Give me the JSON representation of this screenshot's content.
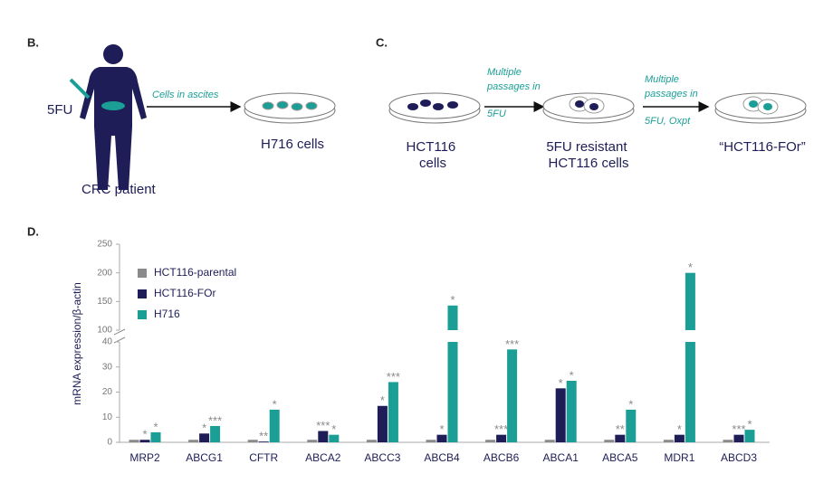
{
  "panel_b": {
    "label": "B.",
    "drug": "5FU",
    "arrow_label": "Cells in ascites",
    "cells": "H716 cells",
    "patient": "CRC patient"
  },
  "panel_c": {
    "label": "C.",
    "start_cells": [
      "HCT116",
      "cells"
    ],
    "step1": [
      "Multiple",
      "passages in",
      "5FU"
    ],
    "resistant_cells": [
      "5FU resistant",
      "HCT116 cells"
    ],
    "step2": [
      "Multiple",
      "passages in",
      "5FU, Oxpt"
    ],
    "final_cells": "“HCT116-FOr”"
  },
  "chart_data": {
    "type": "bar",
    "panel_label": "D.",
    "y_label": "mRNA expression/β-actin",
    "categories": [
      "MRP2",
      "ABCG1",
      "CFTR",
      "ABCA2",
      "ABCC3",
      "ABCB4",
      "ABCB6",
      "ABCA1",
      "ABCA5",
      "MDR1",
      "ABCD3"
    ],
    "series": [
      {
        "name": "HCT116-parental",
        "color": "#8a8a8a",
        "values": [
          1,
          1,
          1,
          1,
          1,
          1,
          1,
          1,
          1,
          1,
          1
        ]
      },
      {
        "name": "HCT116-FOr",
        "color": "#1e1d57",
        "values": [
          1,
          3.5,
          0.3,
          4.5,
          14.5,
          3,
          3,
          21.5,
          3,
          3,
          3
        ],
        "significance": [
          "*",
          "*",
          "**",
          "***",
          "*",
          "*",
          "***",
          "*",
          "**",
          "*",
          "***"
        ]
      },
      {
        "name": "H716",
        "color": "#1a9e96",
        "values": [
          4,
          6.5,
          13,
          3,
          24,
          143,
          37,
          24.5,
          13,
          200,
          5
        ],
        "significance": [
          "*",
          "***",
          "*",
          "*",
          "***",
          "*",
          "***",
          "*",
          "*",
          "*",
          "*"
        ]
      }
    ],
    "ylim": [
      0,
      250
    ],
    "axis_break": [
      40,
      100
    ],
    "yticks": [
      0,
      10,
      20,
      30,
      40,
      100,
      150,
      200,
      250
    ],
    "legend": "upper-left"
  }
}
